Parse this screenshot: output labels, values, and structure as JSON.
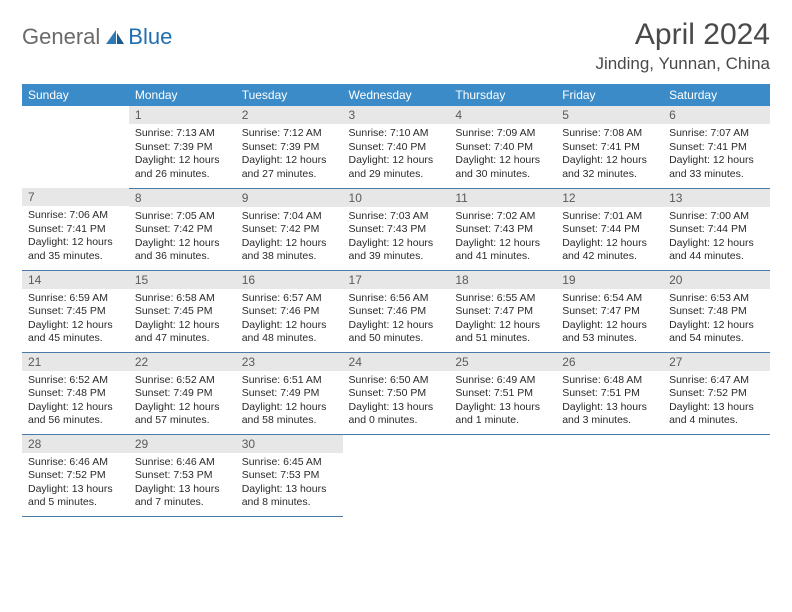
{
  "logo": {
    "general": "General",
    "blue": "Blue"
  },
  "header": {
    "month_title": "April 2024",
    "location": "Jinding, Yunnan, China"
  },
  "day_headers": [
    "Sunday",
    "Monday",
    "Tuesday",
    "Wednesday",
    "Thursday",
    "Friday",
    "Saturday"
  ],
  "colors": {
    "header_bg": "#3b8bc8",
    "header_text": "#ffffff",
    "daynum_bg": "#e7e7e7",
    "row_border": "#4a7aa8",
    "logo_gray": "#6a6a6a",
    "logo_blue": "#1f6fb2"
  },
  "weeks": [
    [
      null,
      {
        "n": "1",
        "sunrise": "7:13 AM",
        "sunset": "7:39 PM",
        "day_h": "12",
        "day_m": "26 minutes"
      },
      {
        "n": "2",
        "sunrise": "7:12 AM",
        "sunset": "7:39 PM",
        "day_h": "12",
        "day_m": "27 minutes"
      },
      {
        "n": "3",
        "sunrise": "7:10 AM",
        "sunset": "7:40 PM",
        "day_h": "12",
        "day_m": "29 minutes"
      },
      {
        "n": "4",
        "sunrise": "7:09 AM",
        "sunset": "7:40 PM",
        "day_h": "12",
        "day_m": "30 minutes"
      },
      {
        "n": "5",
        "sunrise": "7:08 AM",
        "sunset": "7:41 PM",
        "day_h": "12",
        "day_m": "32 minutes"
      },
      {
        "n": "6",
        "sunrise": "7:07 AM",
        "sunset": "7:41 PM",
        "day_h": "12",
        "day_m": "33 minutes"
      }
    ],
    [
      {
        "n": "7",
        "sunrise": "7:06 AM",
        "sunset": "7:41 PM",
        "day_h": "12",
        "day_m": "35 minutes"
      },
      {
        "n": "8",
        "sunrise": "7:05 AM",
        "sunset": "7:42 PM",
        "day_h": "12",
        "day_m": "36 minutes"
      },
      {
        "n": "9",
        "sunrise": "7:04 AM",
        "sunset": "7:42 PM",
        "day_h": "12",
        "day_m": "38 minutes"
      },
      {
        "n": "10",
        "sunrise": "7:03 AM",
        "sunset": "7:43 PM",
        "day_h": "12",
        "day_m": "39 minutes"
      },
      {
        "n": "11",
        "sunrise": "7:02 AM",
        "sunset": "7:43 PM",
        "day_h": "12",
        "day_m": "41 minutes"
      },
      {
        "n": "12",
        "sunrise": "7:01 AM",
        "sunset": "7:44 PM",
        "day_h": "12",
        "day_m": "42 minutes"
      },
      {
        "n": "13",
        "sunrise": "7:00 AM",
        "sunset": "7:44 PM",
        "day_h": "12",
        "day_m": "44 minutes"
      }
    ],
    [
      {
        "n": "14",
        "sunrise": "6:59 AM",
        "sunset": "7:45 PM",
        "day_h": "12",
        "day_m": "45 minutes"
      },
      {
        "n": "15",
        "sunrise": "6:58 AM",
        "sunset": "7:45 PM",
        "day_h": "12",
        "day_m": "47 minutes"
      },
      {
        "n": "16",
        "sunrise": "6:57 AM",
        "sunset": "7:46 PM",
        "day_h": "12",
        "day_m": "48 minutes"
      },
      {
        "n": "17",
        "sunrise": "6:56 AM",
        "sunset": "7:46 PM",
        "day_h": "12",
        "day_m": "50 minutes"
      },
      {
        "n": "18",
        "sunrise": "6:55 AM",
        "sunset": "7:47 PM",
        "day_h": "12",
        "day_m": "51 minutes"
      },
      {
        "n": "19",
        "sunrise": "6:54 AM",
        "sunset": "7:47 PM",
        "day_h": "12",
        "day_m": "53 minutes"
      },
      {
        "n": "20",
        "sunrise": "6:53 AM",
        "sunset": "7:48 PM",
        "day_h": "12",
        "day_m": "54 minutes"
      }
    ],
    [
      {
        "n": "21",
        "sunrise": "6:52 AM",
        "sunset": "7:48 PM",
        "day_h": "12",
        "day_m": "56 minutes"
      },
      {
        "n": "22",
        "sunrise": "6:52 AM",
        "sunset": "7:49 PM",
        "day_h": "12",
        "day_m": "57 minutes"
      },
      {
        "n": "23",
        "sunrise": "6:51 AM",
        "sunset": "7:49 PM",
        "day_h": "12",
        "day_m": "58 minutes"
      },
      {
        "n": "24",
        "sunrise": "6:50 AM",
        "sunset": "7:50 PM",
        "day_h": "13",
        "day_m": "0 minutes"
      },
      {
        "n": "25",
        "sunrise": "6:49 AM",
        "sunset": "7:51 PM",
        "day_h": "13",
        "day_m": "1 minute"
      },
      {
        "n": "26",
        "sunrise": "6:48 AM",
        "sunset": "7:51 PM",
        "day_h": "13",
        "day_m": "3 minutes"
      },
      {
        "n": "27",
        "sunrise": "6:47 AM",
        "sunset": "7:52 PM",
        "day_h": "13",
        "day_m": "4 minutes"
      }
    ],
    [
      {
        "n": "28",
        "sunrise": "6:46 AM",
        "sunset": "7:52 PM",
        "day_h": "13",
        "day_m": "5 minutes"
      },
      {
        "n": "29",
        "sunrise": "6:46 AM",
        "sunset": "7:53 PM",
        "day_h": "13",
        "day_m": "7 minutes"
      },
      {
        "n": "30",
        "sunrise": "6:45 AM",
        "sunset": "7:53 PM",
        "day_h": "13",
        "day_m": "8 minutes"
      },
      null,
      null,
      null,
      null
    ]
  ],
  "labels": {
    "sunrise": "Sunrise: ",
    "sunset": "Sunset: ",
    "daylight_pre": "Daylight: ",
    "daylight_mid": " hours and ",
    "daylight_post": "."
  }
}
